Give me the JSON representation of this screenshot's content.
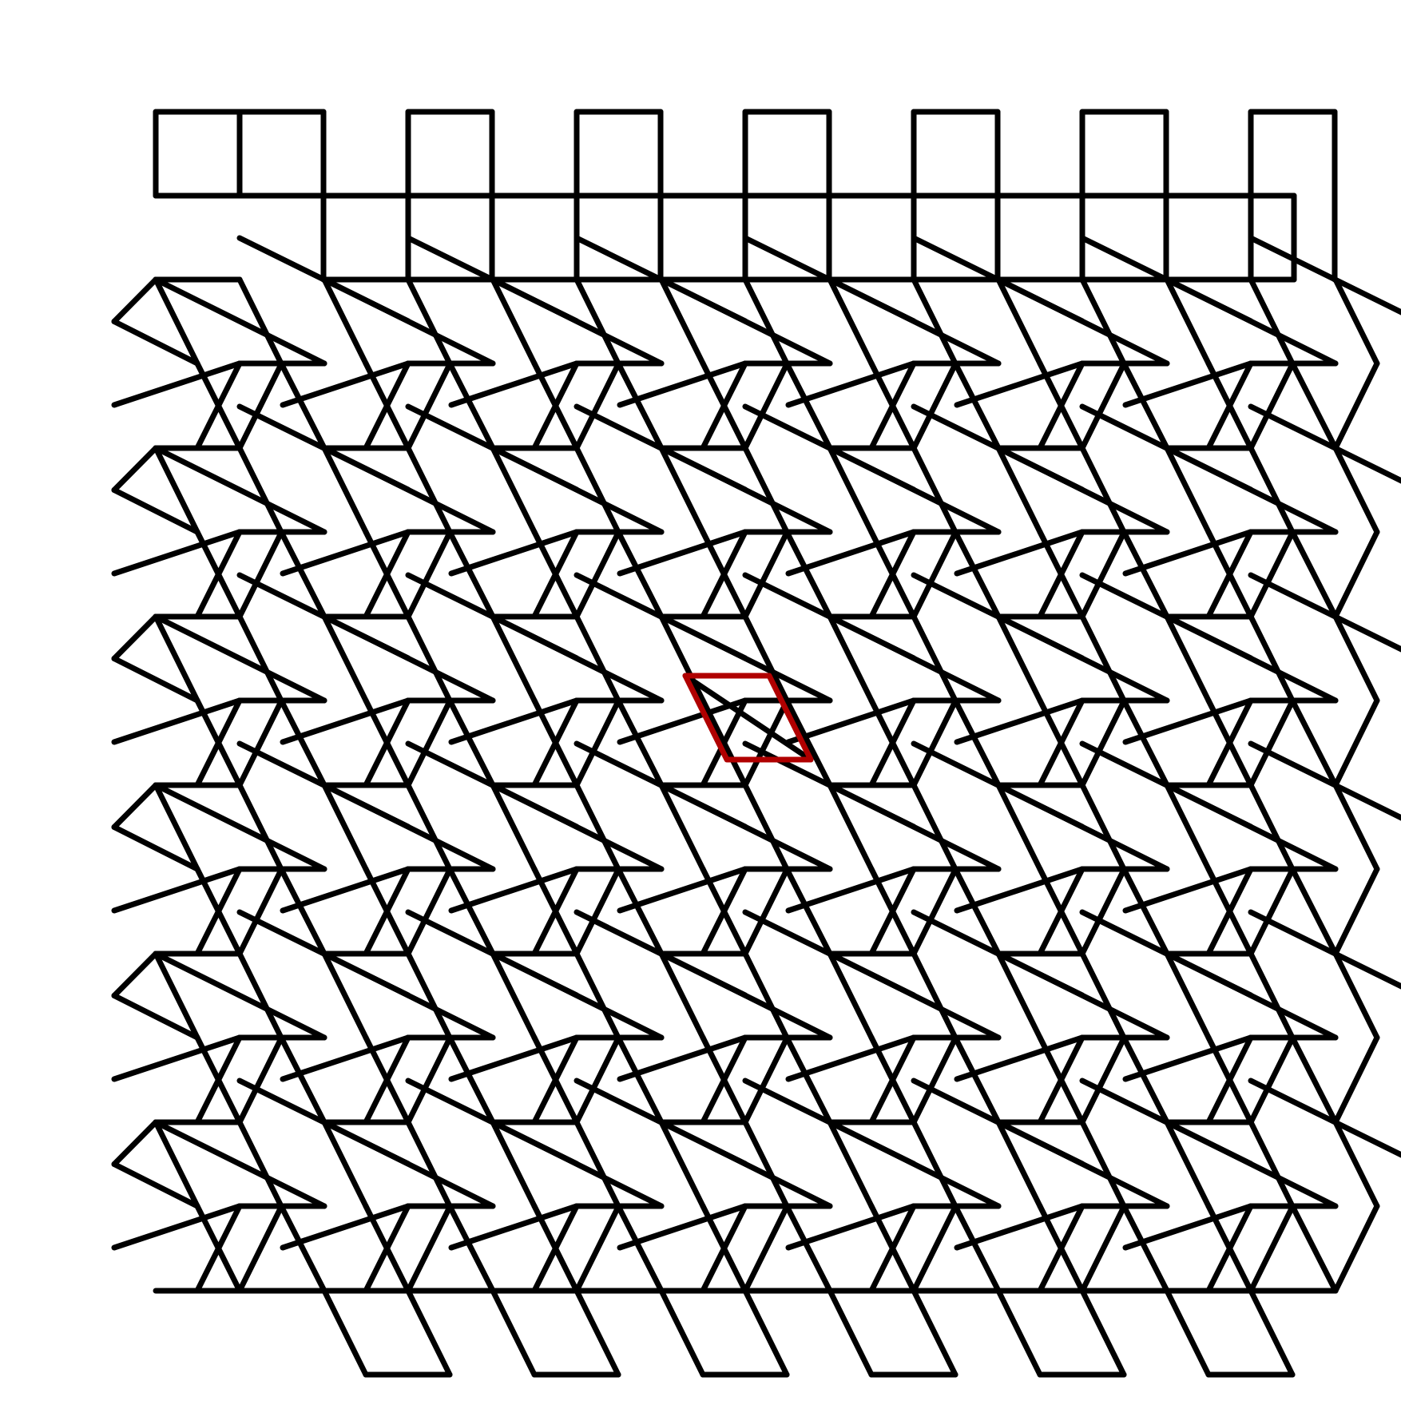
{
  "diagram": {
    "description_colors": {
      "background": "#ffffff",
      "line": "#000000",
      "highlight": "#b00000"
    },
    "grid": {
      "columns": 7,
      "rows": 6,
      "highlight_cell": [
        3,
        3
      ]
    },
    "top_band": {
      "square_count": 7
    },
    "bottom_band": {
      "rhombus_count": 6
    }
  }
}
